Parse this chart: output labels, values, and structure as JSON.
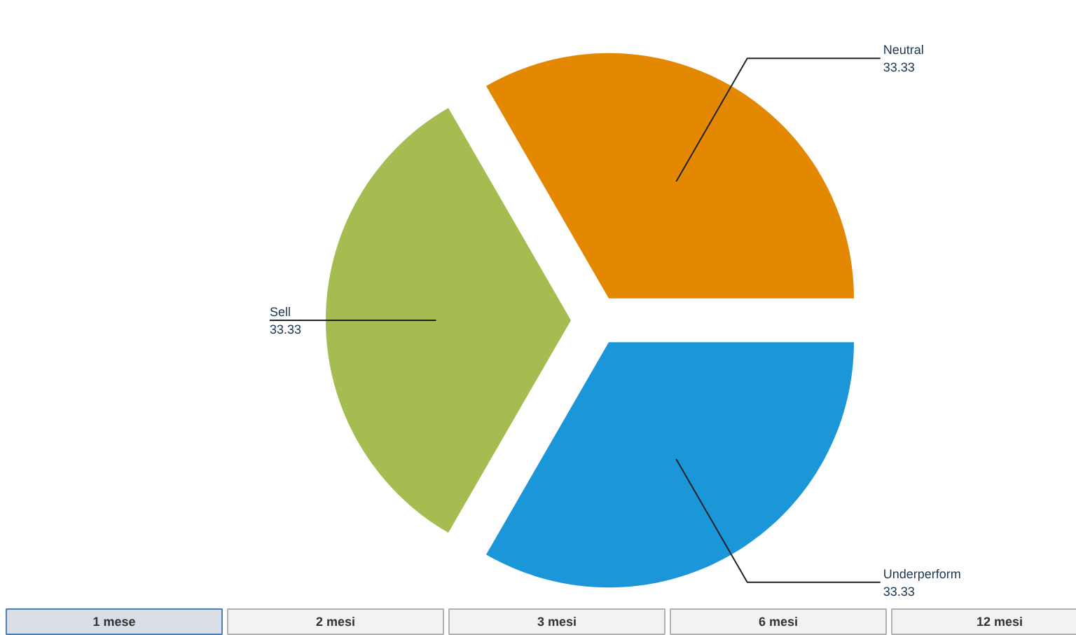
{
  "chart_data": {
    "type": "pie",
    "categories": [
      "Neutral",
      "Sell",
      "Underperform"
    ],
    "values": [
      33.33,
      33.33,
      33.33
    ],
    "colors": [
      "#e38800",
      "#a5bd50",
      "#1b96d9"
    ],
    "data_labels": true,
    "annotations": [
      "1 mese",
      "2 mesi",
      "3 mesi",
      "6 mesi",
      "12 mesi"
    ]
  }
}
